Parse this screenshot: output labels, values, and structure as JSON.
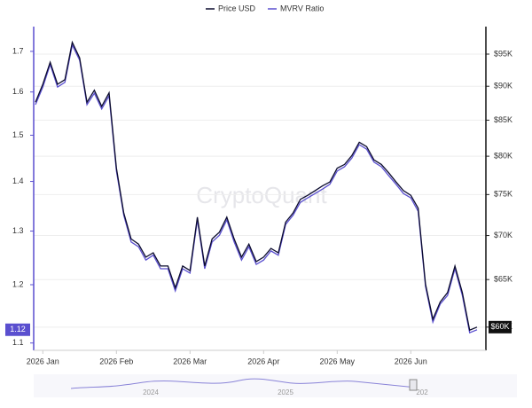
{
  "chart_data": {
    "type": "line",
    "watermark": "CryptoQuant",
    "categories": [
      null,
      "2026 Jan",
      null,
      null,
      null,
      null,
      null,
      null,
      null,
      null,
      null,
      "2026 Feb",
      null,
      null,
      null,
      null,
      null,
      null,
      null,
      null,
      null,
      "2026 Mar",
      null,
      null,
      null,
      null,
      null,
      null,
      null,
      null,
      null,
      "2026 Apr",
      null,
      null,
      null,
      null,
      null,
      null,
      null,
      null,
      null,
      "2026 May",
      null,
      null,
      null,
      null,
      null,
      null,
      null,
      null,
      null,
      "2026 Jun",
      null,
      null,
      null,
      null,
      null,
      null,
      null,
      null,
      null
    ],
    "series": [
      {
        "name": "Price USD",
        "color": "#0b0b2e",
        "axis": "y2",
        "values": [
          87600,
          90300,
          93700,
          90300,
          91000,
          96900,
          94400,
          87600,
          89400,
          87000,
          89000,
          78400,
          72700,
          69600,
          69000,
          67500,
          68000,
          66500,
          66500,
          64100,
          66500,
          66000,
          72200,
          66500,
          69600,
          70400,
          72200,
          69600,
          67500,
          69000,
          67000,
          67500,
          68500,
          68000,
          71600,
          72700,
          74400,
          74900,
          75500,
          76100,
          76600,
          78400,
          78900,
          80100,
          81900,
          81300,
          79500,
          78900,
          77800,
          76600,
          75500,
          74900,
          73300,
          64500,
          60800,
          62600,
          63600,
          66500,
          63600,
          59700,
          60000
        ]
      },
      {
        "name": "MVRV Ratio",
        "color": "#5a4fcf",
        "values": [
          1.57,
          1.612,
          1.667,
          1.612,
          1.623,
          1.716,
          1.678,
          1.57,
          1.597,
          1.56,
          1.591,
          1.422,
          1.331,
          1.279,
          1.27,
          1.245,
          1.254,
          1.229,
          1.229,
          1.189,
          1.229,
          1.221,
          1.322,
          1.229,
          1.279,
          1.292,
          1.322,
          1.279,
          1.245,
          1.27,
          1.237,
          1.245,
          1.262,
          1.254,
          1.313,
          1.331,
          1.357,
          1.366,
          1.375,
          1.384,
          1.394,
          1.422,
          1.431,
          1.45,
          1.479,
          1.469,
          1.441,
          1.431,
          1.412,
          1.394,
          1.375,
          1.366,
          1.339,
          1.197,
          1.135,
          1.166,
          1.181,
          1.229,
          1.181,
          1.117,
          1.122
        ]
      }
    ],
    "ylog": true,
    "y2log": true,
    "ylim": [
      1.088,
      1.764
    ],
    "yticks": [
      1.1,
      1.2,
      1.3,
      1.4,
      1.5,
      1.6,
      1.7
    ],
    "y2lim": [
      57700,
      99500
    ],
    "y2ticks": [
      {
        "value": 60000,
        "label": "$60K"
      },
      {
        "value": 65000,
        "label": "$65K"
      },
      {
        "value": 70000,
        "label": "$70K"
      },
      {
        "value": 75000,
        "label": "$75K"
      },
      {
        "value": 80000,
        "label": "$80K"
      },
      {
        "value": 85000,
        "label": "$85K"
      },
      {
        "value": 90000,
        "label": "$90K"
      },
      {
        "value": 95000,
        "label": "$95K"
      }
    ],
    "y_last_label": "1.12",
    "y2_last_label": "$60K",
    "grid": true,
    "legend": "top",
    "navigator_labels": [
      "2024",
      "2025",
      "202"
    ]
  }
}
